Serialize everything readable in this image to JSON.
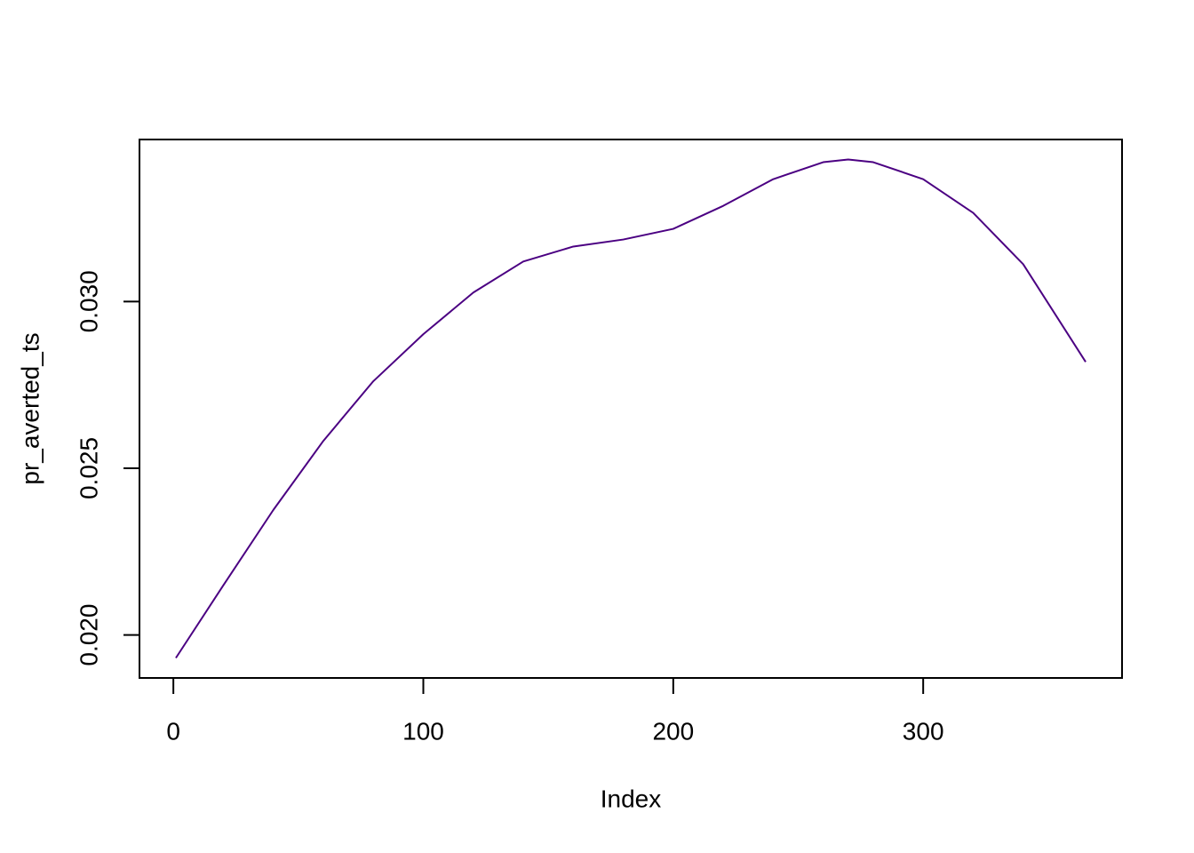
{
  "chart_data": {
    "type": "line",
    "x_label": "Index",
    "y_label": "pr_averted_ts",
    "x": [
      1,
      20,
      40,
      60,
      80,
      100,
      120,
      140,
      160,
      180,
      200,
      220,
      240,
      260,
      270,
      280,
      300,
      320,
      340,
      365
    ],
    "series": [
      {
        "color": "#4b0082",
        "values": [
          0.01931,
          0.02149,
          0.02375,
          0.02582,
          0.02761,
          0.02902,
          0.03027,
          0.0312,
          0.03165,
          0.03186,
          0.03218,
          0.03287,
          0.03367,
          0.03418,
          0.03426,
          0.03418,
          0.03367,
          0.03266,
          0.03112,
          0.02819
        ]
      }
    ],
    "xlim": [
      -13.56,
      379.56
    ],
    "ylim": [
      0.01871,
      0.03486
    ],
    "xticks": [
      0,
      100,
      200,
      300
    ],
    "yticks": [
      {
        "value": 0.02,
        "label": "0.020"
      },
      {
        "value": 0.025,
        "label": "0.025"
      },
      {
        "value": 0.03,
        "label": "0.030"
      }
    ]
  }
}
